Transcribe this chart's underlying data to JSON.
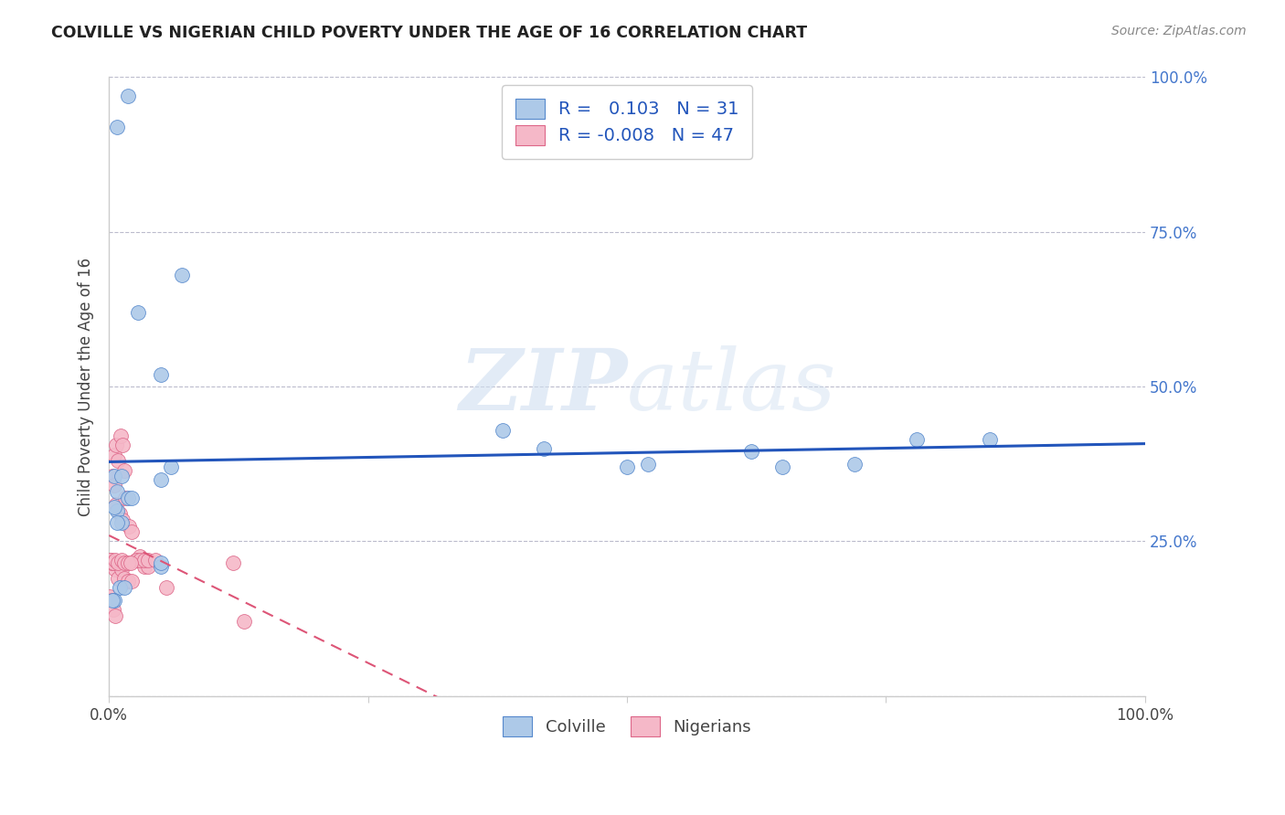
{
  "title": "COLVILLE VS NIGERIAN CHILD POVERTY UNDER THE AGE OF 16 CORRELATION CHART",
  "source": "Source: ZipAtlas.com",
  "ylabel": "Child Poverty Under the Age of 16",
  "xlim": [
    0.0,
    1.0
  ],
  "ylim": [
    0.0,
    1.0
  ],
  "colville_R": 0.103,
  "colville_N": 31,
  "nigerian_R": -0.008,
  "nigerian_N": 47,
  "colville_color": "#adc9e8",
  "nigerian_color": "#f5b8c8",
  "colville_edge_color": "#5588cc",
  "nigerian_edge_color": "#dd6688",
  "colville_line_color": "#2255bb",
  "nigerian_line_color": "#dd5577",
  "background_color": "#ffffff",
  "grid_color": "#bbbbcc",
  "right_tick_color": "#4477cc",
  "watermark_color": "#d0dff0",
  "colville_x": [
    0.008,
    0.018,
    0.028,
    0.005,
    0.008,
    0.012,
    0.008,
    0.012,
    0.018,
    0.022,
    0.05,
    0.05,
    0.06,
    0.38,
    0.42,
    0.5,
    0.52,
    0.62,
    0.65,
    0.72,
    0.78,
    0.85,
    0.005,
    0.008,
    0.01,
    0.015,
    0.005,
    0.05,
    0.05,
    0.003,
    0.07
  ],
  "colville_y": [
    0.92,
    0.97,
    0.62,
    0.355,
    0.33,
    0.355,
    0.3,
    0.28,
    0.32,
    0.32,
    0.52,
    0.35,
    0.37,
    0.43,
    0.4,
    0.37,
    0.375,
    0.395,
    0.37,
    0.375,
    0.415,
    0.415,
    0.305,
    0.28,
    0.175,
    0.175,
    0.155,
    0.21,
    0.215,
    0.155,
    0.68
  ],
  "nigerian_x": [
    0.005,
    0.007,
    0.009,
    0.011,
    0.013,
    0.015,
    0.003,
    0.005,
    0.007,
    0.01,
    0.013,
    0.016,
    0.019,
    0.022,
    0.026,
    0.03,
    0.034,
    0.038,
    0.002,
    0.004,
    0.006,
    0.009,
    0.012,
    0.015,
    0.018,
    0.022,
    0.026,
    0.03,
    0.034,
    0.038,
    0.001,
    0.002,
    0.004,
    0.006,
    0.009,
    0.012,
    0.015,
    0.018,
    0.021,
    0.045,
    0.001,
    0.002,
    0.004,
    0.006,
    0.12,
    0.055,
    0.13
  ],
  "nigerian_y": [
    0.39,
    0.405,
    0.38,
    0.42,
    0.405,
    0.365,
    0.355,
    0.34,
    0.31,
    0.295,
    0.285,
    0.32,
    0.275,
    0.265,
    0.22,
    0.225,
    0.21,
    0.21,
    0.22,
    0.215,
    0.205,
    0.19,
    0.205,
    0.19,
    0.185,
    0.185,
    0.22,
    0.22,
    0.22,
    0.22,
    0.22,
    0.215,
    0.215,
    0.22,
    0.215,
    0.22,
    0.215,
    0.215,
    0.215,
    0.22,
    0.16,
    0.155,
    0.14,
    0.13,
    0.215,
    0.175,
    0.12
  ]
}
